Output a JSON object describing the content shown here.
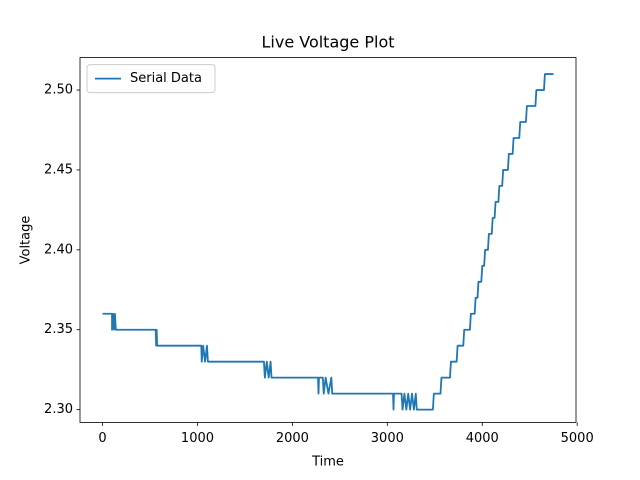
{
  "chart_data": {
    "type": "line",
    "title": "Live Voltage Plot",
    "x_label": "Time",
    "y_label": "Voltage",
    "legend": "upper left",
    "xlim": [
      -237.5,
      4987.5
    ],
    "ylim": [
      2.292,
      2.5203
    ],
    "xticks": [
      0,
      1000,
      2000,
      3000,
      4000,
      5000
    ],
    "yticks": [
      {
        "value": 2.3,
        "label": "2.30"
      },
      {
        "value": 2.35,
        "label": "2.35"
      },
      {
        "value": 2.4,
        "label": "2.40"
      },
      {
        "value": 2.45,
        "label": "2.45"
      },
      {
        "value": 2.5,
        "label": "2.50"
      }
    ],
    "x": [
      0,
      100,
      100,
      110,
      120,
      130,
      140,
      560,
      565,
      570,
      575,
      1040,
      1045,
      1060,
      1080,
      1100,
      1110,
      1700,
      1710,
      1730,
      1750,
      1770,
      1780,
      2270,
      2275,
      2280,
      2320,
      2330,
      2350,
      2380,
      2410,
      2420,
      3060,
      3065,
      3070,
      3150,
      3160,
      3180,
      3200,
      3220,
      3240,
      3260,
      3280,
      3300,
      3310,
      3480,
      3490,
      3560,
      3570,
      3660,
      3670,
      3730,
      3740,
      3800,
      3810,
      3870,
      3880,
      3920,
      3930,
      3950,
      3960,
      3990,
      4000,
      4020,
      4030,
      4060,
      4070,
      4100,
      4110,
      4130,
      4140,
      4170,
      4180,
      4210,
      4220,
      4270,
      4280,
      4320,
      4330,
      4390,
      4400,
      4460,
      4470,
      4560,
      4570,
      4650,
      4660,
      4750
    ],
    "series": [
      {
        "name": "Serial Data",
        "color": "#1f77b4",
        "values": [
          2.36,
          2.36,
          2.35,
          2.36,
          2.35,
          2.36,
          2.35,
          2.35,
          2.34,
          2.35,
          2.34,
          2.34,
          2.33,
          2.34,
          2.33,
          2.34,
          2.33,
          2.33,
          2.32,
          2.33,
          2.32,
          2.33,
          2.32,
          2.32,
          2.31,
          2.32,
          2.32,
          2.31,
          2.32,
          2.31,
          2.32,
          2.31,
          2.31,
          2.3,
          2.31,
          2.31,
          2.3,
          2.31,
          2.3,
          2.31,
          2.3,
          2.31,
          2.3,
          2.31,
          2.3,
          2.3,
          2.31,
          2.31,
          2.32,
          2.32,
          2.33,
          2.33,
          2.34,
          2.34,
          2.35,
          2.35,
          2.36,
          2.36,
          2.37,
          2.37,
          2.38,
          2.38,
          2.39,
          2.39,
          2.4,
          2.4,
          2.41,
          2.41,
          2.42,
          2.42,
          2.43,
          2.43,
          2.44,
          2.44,
          2.45,
          2.45,
          2.46,
          2.46,
          2.47,
          2.47,
          2.48,
          2.48,
          2.49,
          2.49,
          2.5,
          2.5,
          2.51,
          2.51
        ]
      }
    ]
  }
}
